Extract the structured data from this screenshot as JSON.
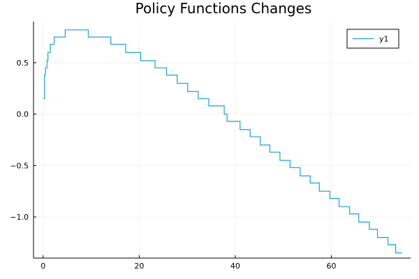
{
  "chart_data": {
    "type": "line",
    "title": "Policy Functions Changes",
    "xlabel": "",
    "ylabel": "",
    "xlim": [
      -2,
      76.5
    ],
    "ylim": [
      -1.4,
      0.9
    ],
    "xticks": [
      0,
      20,
      40,
      60
    ],
    "yticks": [
      0.5,
      0.0,
      -0.5,
      -1.0
    ],
    "xtick_labels": [
      "0",
      "20",
      "40",
      "60"
    ],
    "ytick_labels": [
      "0.5",
      "0.0",
      "−0.5",
      "−1.0"
    ],
    "grid": true,
    "legend": {
      "position": "top-right",
      "entries": [
        "y1"
      ]
    },
    "series": [
      {
        "name": "y1",
        "color": "#1a9fd8",
        "step": true,
        "x": [
          0.0,
          0.3,
          0.5,
          0.8,
          1.0,
          1.5,
          2.3,
          4.6,
          9.4,
          14.1,
          17.2,
          20.3,
          23.3,
          25.7,
          27.9,
          30.1,
          32.3,
          34.5,
          37.7,
          38.3,
          41.0,
          43.1,
          45.2,
          47.2,
          49.3,
          51.4,
          53.5,
          55.6,
          57.5,
          59.7,
          61.6,
          63.8,
          65.7,
          67.9,
          69.6,
          71.8,
          73.4,
          74.7
        ],
        "y": [
          0.15,
          0.38,
          0.45,
          0.52,
          0.6,
          0.68,
          0.75,
          0.82,
          0.75,
          0.68,
          0.6,
          0.52,
          0.45,
          0.38,
          0.3,
          0.22,
          0.15,
          0.08,
          0.0,
          -0.07,
          -0.15,
          -0.22,
          -0.3,
          -0.37,
          -0.45,
          -0.52,
          -0.6,
          -0.67,
          -0.75,
          -0.82,
          -0.9,
          -0.97,
          -1.05,
          -1.12,
          -1.2,
          -1.27,
          -1.35,
          -1.35
        ]
      }
    ]
  }
}
